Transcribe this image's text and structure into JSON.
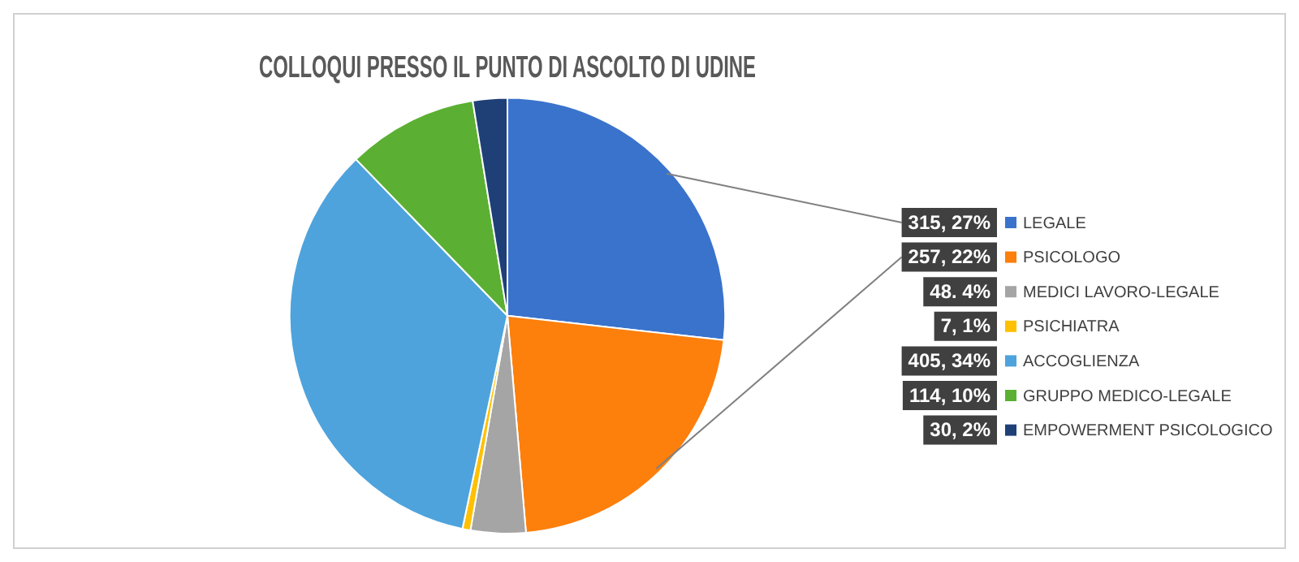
{
  "chart_data": {
    "type": "pie",
    "title": "COLLOQUI PRESSO IL PUNTO DI ASCOLTO DI UDINE",
    "categories": [
      "LEGALE",
      "PSICOLOGO",
      "MEDICI LAVORO-LEGALE",
      "PSICHIATRA",
      "ACCOGLIENZA",
      "GRUPPO MEDICO-LEGALE",
      "EMPOWERMENT PSICOLOGICO"
    ],
    "values": [
      315,
      257,
      48,
      7,
      405,
      114,
      30
    ],
    "colors": [
      "#3a73cc",
      "#fd7f0c",
      "#a5a5a5",
      "#ffc000",
      "#4ea3dc",
      "#5bb033",
      "#1f3f77"
    ],
    "value_labels": [
      "315, 27%",
      "257, 22%",
      "48. 4%",
      "7, 1%",
      "405, 34%",
      "114, 10%",
      "30, 2%"
    ],
    "legend": "right"
  }
}
